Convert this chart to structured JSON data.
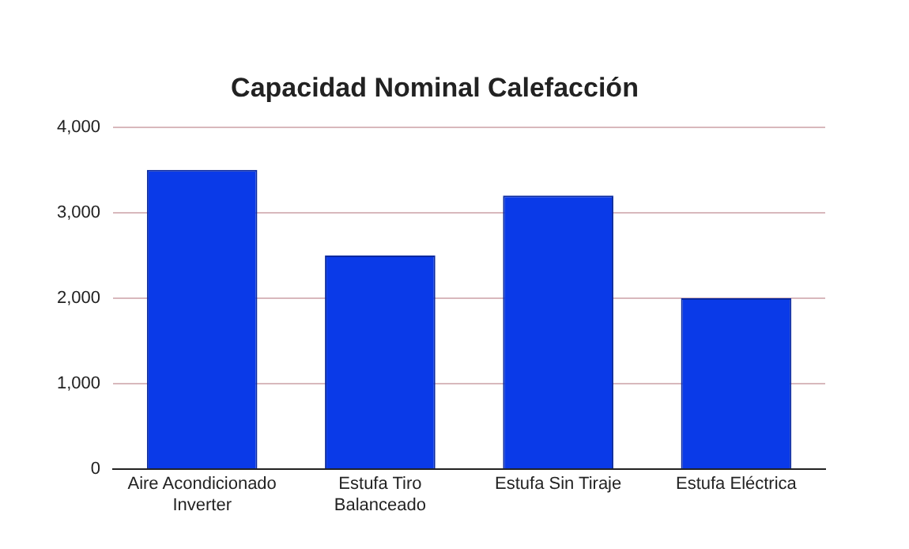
{
  "chart_data": {
    "type": "bar",
    "title": "Capacidad Nominal Calefacción",
    "categories": [
      "Aire Acondicionado Inverter",
      "Estufa Tiro Balanceado",
      "Estufa Sin Tiraje",
      "Estufa Eléctrica"
    ],
    "values": [
      3500,
      2500,
      3200,
      2000
    ],
    "color": "#0a3ae8",
    "ylim": [
      0,
      4000
    ],
    "yticks": [
      0,
      {
        "value": 1000,
        "label": "1,000"
      },
      {
        "value": 2000,
        "label": "2,000"
      },
      {
        "value": 3000,
        "label": "3,000"
      },
      {
        "value": 4000,
        "label": "4,000"
      }
    ],
    "grid": "y"
  }
}
